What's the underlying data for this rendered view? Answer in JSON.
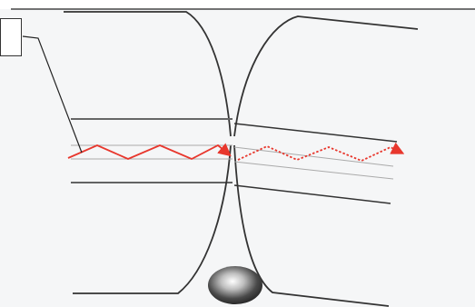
{
  "diagram": {
    "callout_label": "",
    "colors": {
      "background": "#f5f6f7",
      "border": "#222222",
      "fiber": "#333333",
      "signal": "#e8372d",
      "ball": "#555555"
    }
  }
}
